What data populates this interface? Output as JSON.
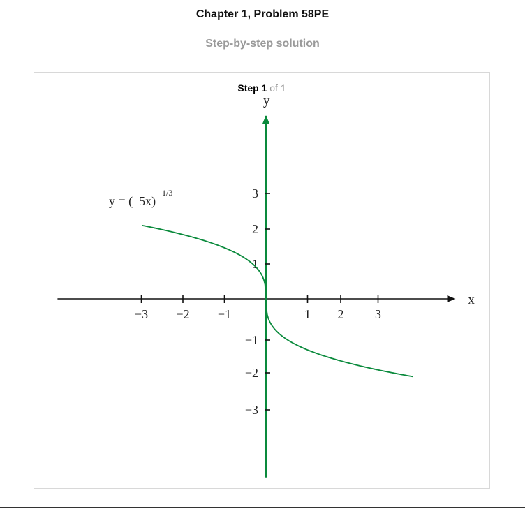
{
  "header": {
    "title": "Chapter 1, Problem 58PE",
    "subtitle": "Step-by-step solution"
  },
  "step": {
    "label": "Step 1",
    "of_text": "of 1"
  },
  "chart_data": {
    "type": "line",
    "title": "",
    "xlabel": "x",
    "ylabel": "y",
    "xlim": [
      -3.4,
      4.6
    ],
    "ylim": [
      -4.1,
      4.5
    ],
    "x_ticks": [
      -3,
      -2,
      -1,
      1,
      2,
      3
    ],
    "x_tick_labels": [
      "−3",
      "−2",
      "−1",
      "1",
      "2",
      "3"
    ],
    "y_ticks": [
      -3,
      -2,
      -1,
      1,
      2,
      3
    ],
    "y_tick_labels": [
      "−3",
      "−2",
      "−1",
      "1",
      "2",
      "3"
    ],
    "grid": false,
    "series": [
      {
        "name": "y = (−5x)^(1/3)",
        "color": "#0a8a3c",
        "x": [
          -3.2,
          -3.0,
          -2.5,
          -2.0,
          -1.5,
          -1.0,
          -0.5,
          -0.2,
          -0.05,
          0,
          0.05,
          0.2,
          0.5,
          1.0,
          1.5,
          2.0,
          2.5,
          3.0,
          3.5,
          3.8
        ],
        "y": [
          2.52,
          2.47,
          2.32,
          2.15,
          1.96,
          1.71,
          1.36,
          1.0,
          0.63,
          0,
          -0.63,
          -1.0,
          -1.36,
          -1.71,
          -1.96,
          -2.15,
          -2.32,
          -2.47,
          -2.6,
          -2.67
        ]
      }
    ],
    "annotation": {
      "base": "y = (–5x)",
      "exponent": "1/3"
    },
    "axis_color": "#0a8a3c",
    "x_axis_color": "#111111"
  }
}
